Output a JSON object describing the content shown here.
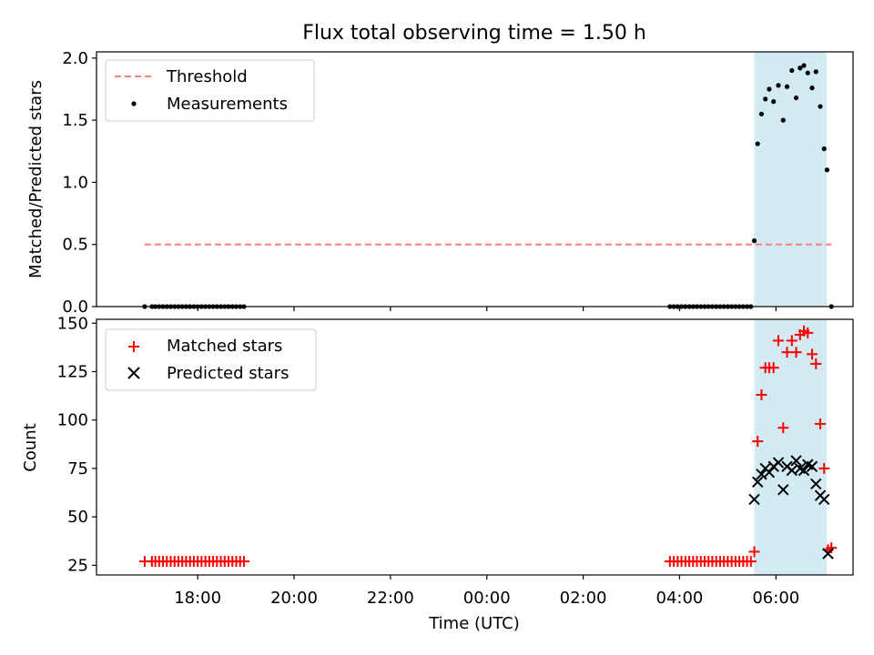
{
  "chart_data": {
    "title": "Flux total observing time = 1.50 h",
    "xlabel": "Time (UTC)",
    "xticks": [
      "18:00",
      "20:00",
      "22:00",
      "00:00",
      "02:00",
      "04:00",
      "06:00"
    ],
    "xtick_hours": [
      18,
      20,
      22,
      24,
      26,
      28,
      30
    ],
    "xlim_hours": [
      15.9,
      31.6
    ],
    "shaded_interval_hours": [
      29.55,
      31.05
    ],
    "shaded_color": "#add8e6",
    "panels": [
      {
        "type": "scatter",
        "ylabel": "Matched/Predicted stars",
        "ylim": [
          0,
          2.05
        ],
        "yticks": [
          "0.0",
          "0.5",
          "1.0",
          "1.5",
          "2.0"
        ],
        "ytick_values": [
          0,
          0.5,
          1.0,
          1.5,
          2.0
        ],
        "threshold": {
          "name": "Threshold",
          "value": 0.5,
          "x_range_hours": [
            16.9,
            31.15
          ],
          "color": "#ff7f7f"
        },
        "series": [
          {
            "name": "Measurements",
            "color": "#000000",
            "marker": "dot",
            "points": [
              [
                16.9,
                0
              ],
              [
                17.05,
                0
              ],
              [
                17.12,
                0
              ],
              [
                17.2,
                0
              ],
              [
                17.28,
                0
              ],
              [
                17.36,
                0
              ],
              [
                17.44,
                0
              ],
              [
                17.52,
                0
              ],
              [
                17.6,
                0
              ],
              [
                17.68,
                0
              ],
              [
                17.76,
                0
              ],
              [
                17.84,
                0
              ],
              [
                17.92,
                0
              ],
              [
                18.0,
                0
              ],
              [
                18.08,
                0
              ],
              [
                18.16,
                0
              ],
              [
                18.24,
                0
              ],
              [
                18.32,
                0
              ],
              [
                18.4,
                0
              ],
              [
                18.48,
                0
              ],
              [
                18.56,
                0
              ],
              [
                18.64,
                0
              ],
              [
                18.72,
                0
              ],
              [
                18.8,
                0
              ],
              [
                18.88,
                0
              ],
              [
                18.96,
                0
              ],
              [
                27.8,
                0
              ],
              [
                27.88,
                0
              ],
              [
                27.96,
                0
              ],
              [
                28.04,
                0
              ],
              [
                28.12,
                0
              ],
              [
                28.2,
                0
              ],
              [
                28.28,
                0
              ],
              [
                28.36,
                0
              ],
              [
                28.44,
                0
              ],
              [
                28.52,
                0
              ],
              [
                28.6,
                0
              ],
              [
                28.68,
                0
              ],
              [
                28.76,
                0
              ],
              [
                28.84,
                0
              ],
              [
                28.92,
                0
              ],
              [
                29.0,
                0
              ],
              [
                29.08,
                0
              ],
              [
                29.16,
                0
              ],
              [
                29.24,
                0
              ],
              [
                29.32,
                0
              ],
              [
                29.4,
                0
              ],
              [
                29.48,
                0
              ],
              [
                29.55,
                0.53
              ],
              [
                29.62,
                1.31
              ],
              [
                29.7,
                1.55
              ],
              [
                29.78,
                1.67
              ],
              [
                29.86,
                1.75
              ],
              [
                29.95,
                1.65
              ],
              [
                30.05,
                1.78
              ],
              [
                30.15,
                1.5
              ],
              [
                30.23,
                1.77
              ],
              [
                30.33,
                1.9
              ],
              [
                30.42,
                1.68
              ],
              [
                30.5,
                1.92
              ],
              [
                30.58,
                1.94
              ],
              [
                30.66,
                1.88
              ],
              [
                30.75,
                1.76
              ],
              [
                30.83,
                1.89
              ],
              [
                30.92,
                1.61
              ],
              [
                31.0,
                1.27
              ],
              [
                31.06,
                1.1
              ],
              [
                31.15,
                0
              ]
            ]
          }
        ]
      },
      {
        "type": "scatter",
        "ylabel": "Count",
        "ylim": [
          20,
          152
        ],
        "yticks": [
          "25",
          "50",
          "75",
          "100",
          "125",
          "150"
        ],
        "ytick_values": [
          25,
          50,
          75,
          100,
          125,
          150
        ],
        "series": [
          {
            "name": "Matched stars",
            "color": "#ff0000",
            "marker": "plus",
            "points": [
              [
                16.9,
                27
              ],
              [
                17.05,
                27
              ],
              [
                17.12,
                27
              ],
              [
                17.2,
                27
              ],
              [
                17.28,
                27
              ],
              [
                17.36,
                27
              ],
              [
                17.44,
                27
              ],
              [
                17.52,
                27
              ],
              [
                17.6,
                27
              ],
              [
                17.68,
                27
              ],
              [
                17.76,
                27
              ],
              [
                17.84,
                27
              ],
              [
                17.92,
                27
              ],
              [
                18.0,
                27
              ],
              [
                18.08,
                27
              ],
              [
                18.16,
                27
              ],
              [
                18.24,
                27
              ],
              [
                18.32,
                27
              ],
              [
                18.4,
                27
              ],
              [
                18.48,
                27
              ],
              [
                18.56,
                27
              ],
              [
                18.64,
                27
              ],
              [
                18.72,
                27
              ],
              [
                18.8,
                27
              ],
              [
                18.88,
                27
              ],
              [
                18.96,
                27
              ],
              [
                27.8,
                27
              ],
              [
                27.88,
                27
              ],
              [
                27.96,
                27
              ],
              [
                28.04,
                27
              ],
              [
                28.12,
                27
              ],
              [
                28.2,
                27
              ],
              [
                28.28,
                27
              ],
              [
                28.36,
                27
              ],
              [
                28.44,
                27
              ],
              [
                28.52,
                27
              ],
              [
                28.6,
                27
              ],
              [
                28.68,
                27
              ],
              [
                28.76,
                27
              ],
              [
                28.84,
                27
              ],
              [
                28.92,
                27
              ],
              [
                29.0,
                27
              ],
              [
                29.08,
                27
              ],
              [
                29.16,
                27
              ],
              [
                29.24,
                27
              ],
              [
                29.32,
                27
              ],
              [
                29.4,
                27
              ],
              [
                29.48,
                27
              ],
              [
                29.55,
                32
              ],
              [
                29.62,
                89
              ],
              [
                29.7,
                113
              ],
              [
                29.78,
                127
              ],
              [
                29.86,
                127
              ],
              [
                29.95,
                127
              ],
              [
                30.05,
                141
              ],
              [
                30.15,
                96
              ],
              [
                30.23,
                135
              ],
              [
                30.33,
                141
              ],
              [
                30.42,
                135
              ],
              [
                30.5,
                144
              ],
              [
                30.58,
                146
              ],
              [
                30.66,
                145
              ],
              [
                30.75,
                134
              ],
              [
                30.83,
                129
              ],
              [
                30.92,
                98
              ],
              [
                31.0,
                75
              ],
              [
                31.08,
                33
              ],
              [
                31.15,
                34
              ]
            ]
          },
          {
            "name": "Predicted stars",
            "color": "#000000",
            "marker": "x",
            "points": [
              [
                29.55,
                59
              ],
              [
                29.62,
                68
              ],
              [
                29.7,
                72
              ],
              [
                29.78,
                75
              ],
              [
                29.86,
                73
              ],
              [
                29.95,
                76
              ],
              [
                30.05,
                78
              ],
              [
                30.15,
                64
              ],
              [
                30.23,
                76
              ],
              [
                30.33,
                74
              ],
              [
                30.42,
                79
              ],
              [
                30.5,
                75
              ],
              [
                30.58,
                74
              ],
              [
                30.66,
                77
              ],
              [
                30.75,
                76
              ],
              [
                30.83,
                67
              ],
              [
                30.92,
                61
              ],
              [
                31.0,
                59
              ],
              [
                31.08,
                31
              ]
            ]
          }
        ]
      }
    ]
  }
}
